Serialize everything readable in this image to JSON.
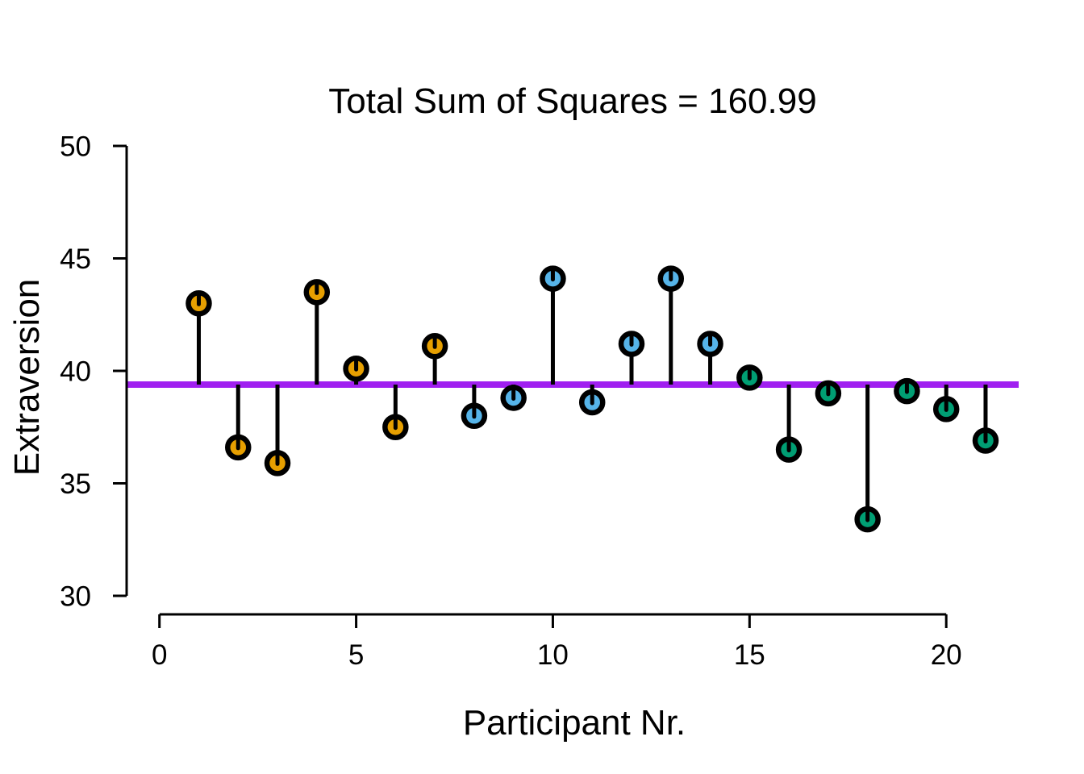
{
  "chart_data": {
    "type": "scatter",
    "subtype": "lollipop-stem-plot",
    "title": "Total Sum of Squares = 160.99",
    "xlabel": "Participant Nr.",
    "ylabel": "Extraversion",
    "x_ticks": [
      0,
      5,
      10,
      15,
      20
    ],
    "y_ticks": [
      30,
      35,
      40,
      45,
      50
    ],
    "xlim": [
      -0.84,
      21.84
    ],
    "ylim": [
      29.2,
      50.8
    ],
    "grid": "off",
    "legend": "none",
    "mean_line_value": 39.39,
    "total_sum_of_squares": 160.99,
    "colors": {
      "mean_line": "#A020F0",
      "stem": "#000000",
      "marker_border": "#000000",
      "axis": "#000000",
      "text": "#000000"
    },
    "groups": [
      {
        "id": "group-1",
        "color": "#E69F00"
      },
      {
        "id": "group-2",
        "color": "#56B4E9"
      },
      {
        "id": "group-3",
        "color": "#009E73"
      }
    ],
    "points": [
      {
        "participant": 1,
        "value": 43.0,
        "group": "group-1"
      },
      {
        "participant": 2,
        "value": 36.6,
        "group": "group-1"
      },
      {
        "participant": 3,
        "value": 35.9,
        "group": "group-1"
      },
      {
        "participant": 4,
        "value": 43.5,
        "group": "group-1"
      },
      {
        "participant": 5,
        "value": 40.1,
        "group": "group-1"
      },
      {
        "participant": 6,
        "value": 37.5,
        "group": "group-1"
      },
      {
        "participant": 7,
        "value": 41.1,
        "group": "group-1"
      },
      {
        "participant": 8,
        "value": 38.0,
        "group": "group-2"
      },
      {
        "participant": 9,
        "value": 38.8,
        "group": "group-2"
      },
      {
        "participant": 10,
        "value": 44.1,
        "group": "group-2"
      },
      {
        "participant": 11,
        "value": 38.6,
        "group": "group-2"
      },
      {
        "participant": 12,
        "value": 41.2,
        "group": "group-2"
      },
      {
        "participant": 13,
        "value": 44.1,
        "group": "group-2"
      },
      {
        "participant": 14,
        "value": 41.2,
        "group": "group-2"
      },
      {
        "participant": 15,
        "value": 39.7,
        "group": "group-3"
      },
      {
        "participant": 16,
        "value": 36.5,
        "group": "group-3"
      },
      {
        "participant": 17,
        "value": 39.0,
        "group": "group-3"
      },
      {
        "participant": 18,
        "value": 33.4,
        "group": "group-3"
      },
      {
        "participant": 19,
        "value": 39.1,
        "group": "group-3"
      },
      {
        "participant": 20,
        "value": 38.3,
        "group": "group-3"
      },
      {
        "participant": 21,
        "value": 36.9,
        "group": "group-3"
      }
    ]
  }
}
